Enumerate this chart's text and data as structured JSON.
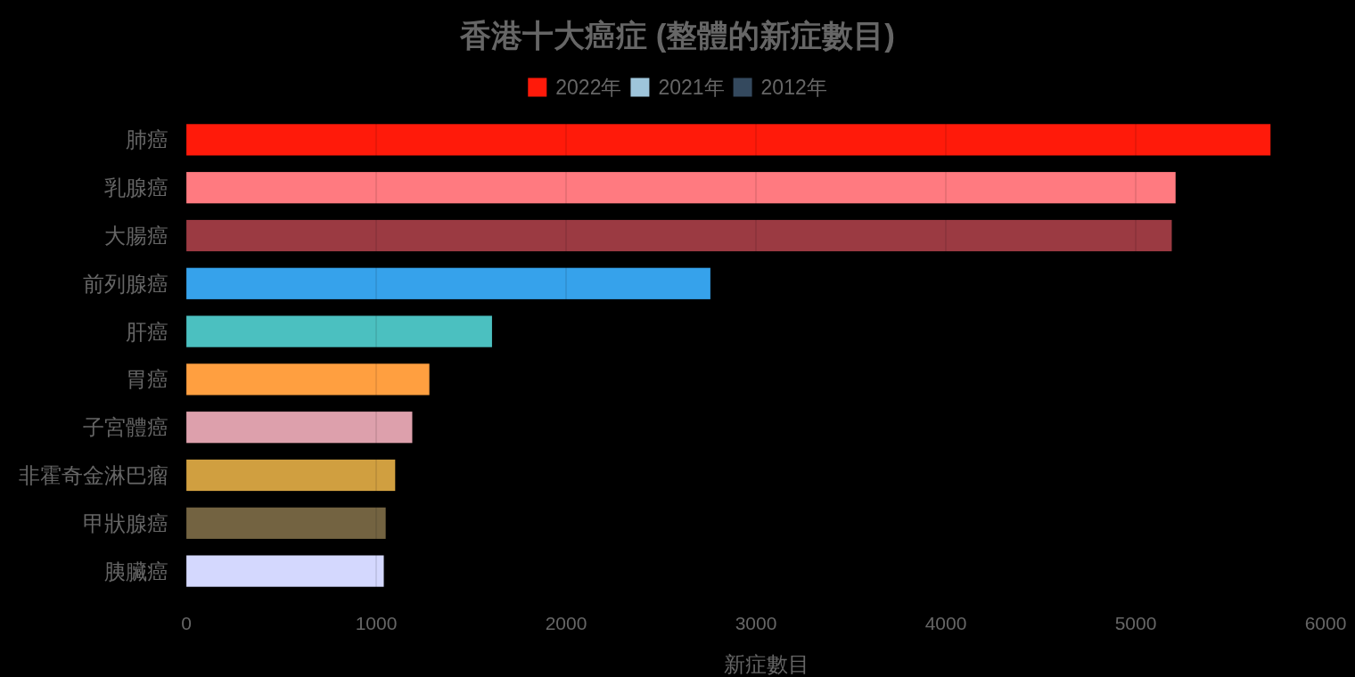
{
  "chart_data": {
    "type": "bar",
    "orientation": "horizontal",
    "title": "香港十大癌症 (整體的新症數目)",
    "xlabel": "新症數目",
    "categories": [
      "肺癌",
      "乳腺癌",
      "大腸癌",
      "前列腺癌",
      "肝癌",
      "胃癌",
      "子宮體癌",
      "非霍奇金淋巴瘤",
      "甲狀腺癌",
      "胰臟癌"
    ],
    "series": [
      {
        "name": "2022年",
        "color": "#ff1a0a",
        "colors": [
          "#ff1a0a",
          "#ff7a80",
          "#9b3a42",
          "#36a2eb",
          "#4bc0c0",
          "#ff9f40",
          "#dda0ac",
          "#d09f40",
          "#736341",
          "#d4d8fe"
        ],
        "values": [
          5710,
          5210,
          5190,
          2760,
          1610,
          1280,
          1190,
          1100,
          1050,
          1040
        ]
      },
      {
        "name": "2021年",
        "color": "#9ec5db",
        "values": [
          null,
          null,
          null,
          null,
          null,
          null,
          null,
          null,
          null,
          null
        ]
      },
      {
        "name": "2012年",
        "color": "#34495e",
        "values": [
          null,
          null,
          null,
          null,
          null,
          null,
          null,
          null,
          null,
          null
        ]
      }
    ],
    "xlim": [
      0,
      6000
    ],
    "xticks": [
      0,
      1000,
      2000,
      3000,
      4000,
      5000,
      6000
    ],
    "grid": "x",
    "legend": "top"
  }
}
